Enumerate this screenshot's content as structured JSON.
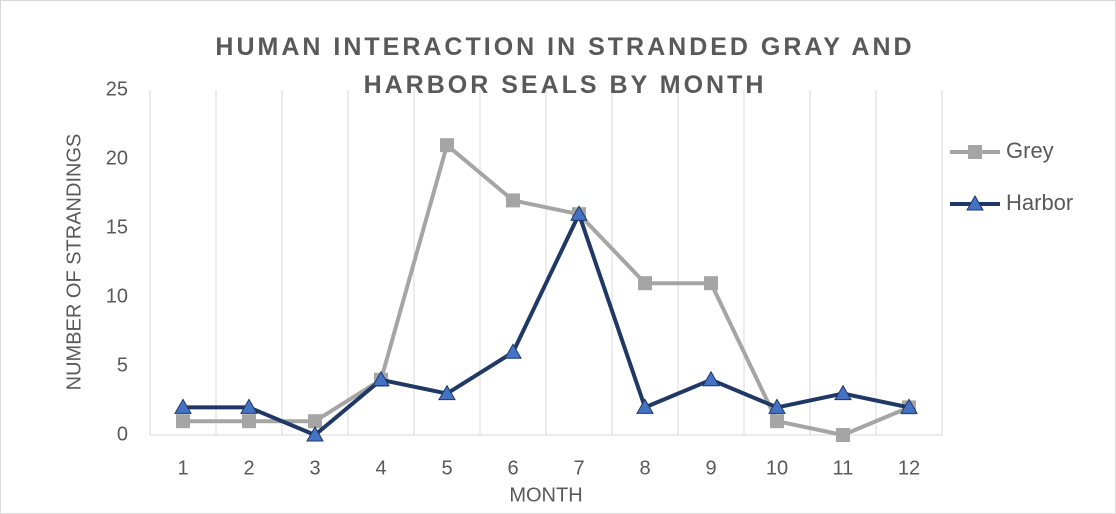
{
  "chart_data": {
    "type": "line",
    "title": "HUMAN INTERACTION IN STRANDED GRAY AND HARBOR SEALS BY MONTH",
    "x_label": "MONTH",
    "y_label": "NUMBER OF STRANDINGS",
    "categories": [
      "1",
      "2",
      "3",
      "4",
      "5",
      "6",
      "7",
      "8",
      "9",
      "10",
      "11",
      "12"
    ],
    "series": [
      {
        "name": "Grey",
        "color": "#a5a5a5",
        "marker": "square",
        "values": [
          1,
          1,
          1,
          4,
          21,
          17,
          16,
          11,
          11,
          1,
          0,
          2
        ]
      },
      {
        "name": "Harbor",
        "color": "#1f3864",
        "marker_fill": "#4472c4",
        "marker": "triangle",
        "values": [
          2,
          2,
          0,
          4,
          3,
          6,
          16,
          2,
          4,
          2,
          3,
          2
        ]
      }
    ],
    "ylim": [
      0,
      25
    ],
    "yticks": [
      0,
      5,
      10,
      15,
      20,
      25
    ],
    "legend": "right"
  }
}
